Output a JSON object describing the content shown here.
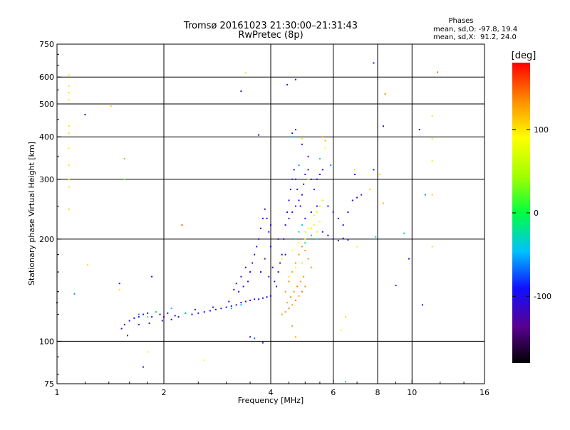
{
  "chart_data": {
    "type": "scatter",
    "title": "Tromsø 20161023 21:30:00–21:31:43",
    "subtitle": "RwPretec (8p)",
    "stats": {
      "heading": "Phases",
      "line_o": "mean, sd,O: -97.8, 19.4",
      "line_x": "mean, sd,X:  91.2, 24.0"
    },
    "xlabel": "Frequency [MHz]",
    "ylabel": "Stationary phase Virtual Height [km]",
    "x_scale": "log",
    "y_scale": "log",
    "xlim": [
      1,
      16
    ],
    "ylim": [
      75,
      750
    ],
    "x_ticks": [
      {
        "value": 1,
        "label": "1"
      },
      {
        "value": 2,
        "label": "2"
      },
      {
        "value": 4,
        "label": "4"
      },
      {
        "value": 6,
        "label": "6"
      },
      {
        "value": 8,
        "label": "8"
      },
      {
        "value": 10,
        "label": "10"
      },
      {
        "value": 16,
        "label": "16"
      }
    ],
    "y_ticks": [
      {
        "value": 75,
        "label": "75"
      },
      {
        "value": 100,
        "label": "100"
      },
      {
        "value": 200,
        "label": "200"
      },
      {
        "value": 300,
        "label": "300"
      },
      {
        "value": 400,
        "label": "400"
      },
      {
        "value": 500,
        "label": "500"
      },
      {
        "value": 600,
        "label": "600"
      },
      {
        "value": 750,
        "label": "750"
      }
    ],
    "grid": true,
    "colorbar": {
      "label": "[deg]",
      "range": [
        -180,
        180
      ],
      "ticks": [
        {
          "value": 100,
          "label": "100"
        },
        {
          "value": 0,
          "label": "0"
        },
        {
          "value": -100,
          "label": "-100"
        }
      ]
    },
    "series": [
      {
        "points": [
          [
            1.52,
            109,
            -105
          ],
          [
            1.55,
            112,
            -95
          ],
          [
            1.6,
            115,
            -110
          ],
          [
            1.65,
            117,
            -100
          ],
          [
            1.7,
            118,
            -90
          ],
          [
            1.75,
            120,
            -105
          ],
          [
            1.8,
            121,
            -98
          ],
          [
            1.85,
            118,
            -112
          ],
          [
            1.9,
            122,
            -100
          ],
          [
            1.95,
            120,
            -94
          ],
          [
            2.0,
            118,
            -108
          ],
          [
            2.05,
            121,
            -100
          ],
          [
            2.1,
            116,
            -90
          ],
          [
            2.15,
            119,
            -102
          ],
          [
            1.58,
            104,
            -115
          ],
          [
            1.7,
            112,
            -120
          ],
          [
            1.82,
            113,
            -96
          ],
          [
            1.98,
            115,
            -88
          ],
          [
            2.2,
            118,
            -100
          ],
          [
            2.3,
            121,
            -96
          ],
          [
            2.4,
            120,
            -104
          ],
          [
            2.5,
            121,
            -110
          ],
          [
            2.6,
            122,
            -100
          ],
          [
            2.7,
            123,
            -98
          ],
          [
            2.8,
            124,
            -105
          ],
          [
            2.9,
            125,
            -100
          ],
          [
            3.0,
            126,
            -96
          ],
          [
            3.1,
            127,
            -108
          ],
          [
            3.2,
            128,
            -100
          ],
          [
            3.3,
            130,
            -94
          ],
          [
            3.4,
            131,
            -102
          ],
          [
            3.5,
            132,
            -100
          ],
          [
            3.6,
            133,
            -110
          ],
          [
            3.7,
            133,
            -98
          ],
          [
            3.8,
            134,
            -100
          ],
          [
            3.9,
            135,
            -104
          ],
          [
            4.0,
            136,
            -96
          ],
          [
            2.45,
            124,
            -88
          ],
          [
            2.75,
            126,
            -84
          ],
          [
            3.05,
            131,
            -92
          ],
          [
            3.25,
            140,
            -100
          ],
          [
            3.35,
            145,
            -98
          ],
          [
            3.45,
            150,
            -106
          ],
          [
            3.5,
            160,
            -100
          ],
          [
            3.55,
            170,
            -96
          ],
          [
            3.6,
            180,
            -110
          ],
          [
            3.65,
            190,
            -100
          ],
          [
            3.7,
            200,
            -92
          ],
          [
            3.75,
            215,
            -104
          ],
          [
            3.8,
            230,
            -100
          ],
          [
            3.85,
            245,
            -96
          ],
          [
            3.9,
            230,
            -108
          ],
          [
            3.95,
            210,
            -100
          ],
          [
            4.0,
            190,
            -98
          ],
          [
            3.4,
            165,
            -110
          ],
          [
            3.3,
            155,
            -100
          ],
          [
            3.2,
            148,
            -94
          ],
          [
            3.15,
            142,
            -120
          ],
          [
            3.75,
            160,
            -96
          ],
          [
            3.85,
            175,
            -102
          ],
          [
            3.95,
            155,
            -88
          ],
          [
            4.05,
            165,
            -100
          ],
          [
            4.1,
            150,
            -105
          ],
          [
            4.15,
            145,
            -96
          ],
          [
            4.2,
            160,
            -100
          ],
          [
            4.25,
            170,
            -110
          ],
          [
            4.3,
            180,
            -98
          ],
          [
            4.35,
            200,
            -100
          ],
          [
            4.4,
            220,
            -104
          ],
          [
            4.45,
            240,
            -96
          ],
          [
            4.5,
            260,
            -100
          ],
          [
            4.55,
            280,
            -92
          ],
          [
            4.6,
            300,
            -100
          ],
          [
            4.65,
            320,
            -108
          ],
          [
            4.7,
            300,
            -100
          ],
          [
            4.75,
            280,
            -96
          ],
          [
            4.8,
            260,
            -104
          ],
          [
            4.85,
            250,
            -100
          ],
          [
            4.9,
            270,
            -94
          ],
          [
            4.95,
            290,
            -100
          ],
          [
            5.0,
            310,
            -106
          ],
          [
            5.1,
            320,
            -100
          ],
          [
            5.2,
            300,
            -98
          ],
          [
            5.3,
            280,
            -102
          ],
          [
            5.4,
            300,
            -100
          ],
          [
            5.5,
            310,
            -96
          ],
          [
            5.6,
            320,
            -104
          ],
          [
            4.5,
            230,
            -100
          ],
          [
            4.6,
            240,
            -90
          ],
          [
            4.7,
            250,
            -100
          ],
          [
            5.0,
            230,
            -96
          ],
          [
            5.2,
            240,
            -102
          ],
          [
            5.4,
            250,
            -100
          ],
          [
            5.6,
            260,
            -108
          ],
          [
            5.8,
            250,
            -100
          ],
          [
            6.0,
            240,
            -96
          ],
          [
            6.2,
            230,
            -104
          ],
          [
            6.4,
            220,
            -100
          ],
          [
            6.6,
            240,
            -98
          ],
          [
            6.8,
            260,
            -100
          ],
          [
            7.0,
            265,
            -102
          ],
          [
            7.2,
            270,
            -96
          ],
          [
            6.0,
            200,
            -100
          ],
          [
            6.2,
            198,
            -104
          ],
          [
            6.4,
            201,
            -100
          ],
          [
            6.6,
            199,
            -96
          ],
          [
            5.6,
            210,
            -100
          ],
          [
            5.8,
            205,
            -106
          ],
          [
            4.4,
            180,
            -110
          ],
          [
            4.2,
            200,
            -96
          ],
          [
            4.0,
            220,
            -100
          ],
          [
            4.6,
            410,
            -100
          ],
          [
            4.7,
            420,
            -96
          ],
          [
            4.9,
            380,
            -104
          ],
          [
            5.1,
            350,
            -100
          ],
          [
            4.45,
            570,
            -100
          ],
          [
            4.7,
            590,
            -104
          ],
          [
            3.7,
            405,
            -110
          ],
          [
            3.3,
            545,
            -96
          ],
          [
            7.8,
            660,
            -100
          ],
          [
            8.3,
            430,
            -104
          ],
          [
            1.2,
            465,
            -100
          ],
          [
            10.5,
            420,
            -108
          ],
          [
            7.8,
            320,
            -100
          ],
          [
            6.9,
            310,
            -96
          ],
          [
            3.5,
            103,
            -100
          ],
          [
            3.8,
            99,
            -104
          ],
          [
            1.75,
            84,
            -120
          ],
          [
            1.85,
            155,
            -110
          ],
          [
            1.5,
            148,
            -100
          ],
          [
            10.7,
            128,
            -96
          ],
          [
            1.0,
            130,
            -112
          ],
          [
            9.8,
            175,
            -100
          ],
          [
            9.0,
            146,
            -104
          ]
        ]
      },
      {
        "points": [
          [
            4.3,
            120,
            130
          ],
          [
            4.4,
            122,
            135
          ],
          [
            4.5,
            125,
            140
          ],
          [
            4.6,
            128,
            128
          ],
          [
            4.7,
            132,
            138
          ],
          [
            4.8,
            136,
            130
          ],
          [
            4.9,
            140,
            142
          ],
          [
            5.0,
            145,
            132
          ],
          [
            4.45,
            130,
            126
          ],
          [
            4.55,
            135,
            136
          ],
          [
            4.65,
            140,
            130
          ],
          [
            4.75,
            145,
            140
          ],
          [
            4.85,
            150,
            128
          ],
          [
            4.95,
            155,
            136
          ],
          [
            4.4,
            140,
            130
          ],
          [
            4.5,
            150,
            138
          ],
          [
            4.6,
            160,
            126
          ],
          [
            4.7,
            170,
            134
          ],
          [
            4.8,
            180,
            130
          ],
          [
            4.9,
            190,
            140
          ],
          [
            5.0,
            185,
            128
          ],
          [
            5.1,
            175,
            136
          ],
          [
            5.2,
            165,
            130
          ],
          [
            4.6,
            185,
            90
          ],
          [
            4.8,
            195,
            86
          ],
          [
            5.0,
            200,
            92
          ],
          [
            5.2,
            205,
            88
          ],
          [
            5.4,
            210,
            94
          ],
          [
            5.1,
            215,
            80
          ],
          [
            5.3,
            220,
            86
          ],
          [
            5.5,
            225,
            90
          ],
          [
            5.4,
            240,
            96
          ],
          [
            5.5,
            250,
            100
          ],
          [
            5.6,
            260,
            94
          ],
          [
            5.3,
            235,
            84
          ],
          [
            5.0,
            210,
            70
          ],
          [
            5.2,
            215,
            60
          ],
          [
            4.7,
            165,
            95
          ],
          [
            4.9,
            170,
            100
          ],
          [
            4.5,
            155,
            98
          ],
          [
            4.3,
            175,
            88
          ],
          [
            5.6,
            400,
            130
          ],
          [
            5.7,
            390,
            120
          ],
          [
            4.9,
            395,
            100
          ],
          [
            5.7,
            370,
            90
          ],
          [
            5.1,
            300,
            95
          ],
          [
            6.9,
            320,
            100
          ],
          [
            7.6,
            280,
            110
          ],
          [
            8.1,
            310,
            105
          ],
          [
            8.3,
            255,
            120
          ],
          [
            8.4,
            535,
            135
          ],
          [
            11.8,
            620,
            150
          ],
          [
            11.4,
            460,
            100
          ],
          [
            11.4,
            395,
            95
          ],
          [
            11.4,
            340,
            98
          ],
          [
            11.4,
            270,
            110
          ],
          [
            11.4,
            190,
            105
          ],
          [
            7.0,
            190,
            90
          ],
          [
            6.5,
            118,
            110
          ],
          [
            6.3,
            108,
            96
          ],
          [
            4.7,
            103,
            125
          ],
          [
            4.6,
            111,
            130
          ],
          [
            1.08,
            607,
            102
          ],
          [
            1.08,
            565,
            98
          ],
          [
            1.08,
            540,
            105
          ],
          [
            1.08,
            515,
            96
          ],
          [
            1.08,
            430,
            100
          ],
          [
            1.08,
            410,
            104
          ],
          [
            1.08,
            370,
            96
          ],
          [
            1.08,
            330,
            102
          ],
          [
            1.08,
            300,
            98
          ],
          [
            1.08,
            285,
            100
          ],
          [
            1.08,
            245,
            106
          ],
          [
            1.42,
            493,
            110
          ],
          [
            1.22,
            168,
            100
          ],
          [
            1.5,
            142,
            104
          ],
          [
            2.6,
            88,
            90
          ],
          [
            1.8,
            93,
            70
          ],
          [
            3.4,
            617,
            60
          ],
          [
            2.25,
            220,
            150
          ]
        ]
      },
      {
        "points": [
          [
            4.7,
            200,
            -30
          ],
          [
            4.8,
            210,
            -20
          ],
          [
            5.0,
            195,
            -10
          ],
          [
            5.2,
            205,
            -40
          ],
          [
            5.4,
            200,
            -25
          ],
          [
            4.9,
            220,
            -35
          ],
          [
            3.3,
            128,
            -50
          ],
          [
            2.3,
            121,
            -40
          ],
          [
            1.55,
            300,
            30
          ],
          [
            1.55,
            345,
            20
          ],
          [
            1.8,
            118,
            10
          ],
          [
            1.9,
            122,
            20
          ],
          [
            1.7,
            120,
            -60
          ],
          [
            3.1,
            125,
            -55
          ],
          [
            2.1,
            125,
            -45
          ],
          [
            6.5,
            76,
            -50
          ],
          [
            10.9,
            270,
            -60
          ],
          [
            1.12,
            138,
            -60
          ],
          [
            3.6,
            102,
            -70
          ],
          [
            7.9,
            203,
            -40
          ],
          [
            9.5,
            208,
            -45
          ],
          [
            4.6,
            400,
            -50
          ],
          [
            4.8,
            330,
            -55
          ],
          [
            5.5,
            345,
            -40
          ],
          [
            5.9,
            330,
            -60
          ]
        ]
      }
    ]
  }
}
